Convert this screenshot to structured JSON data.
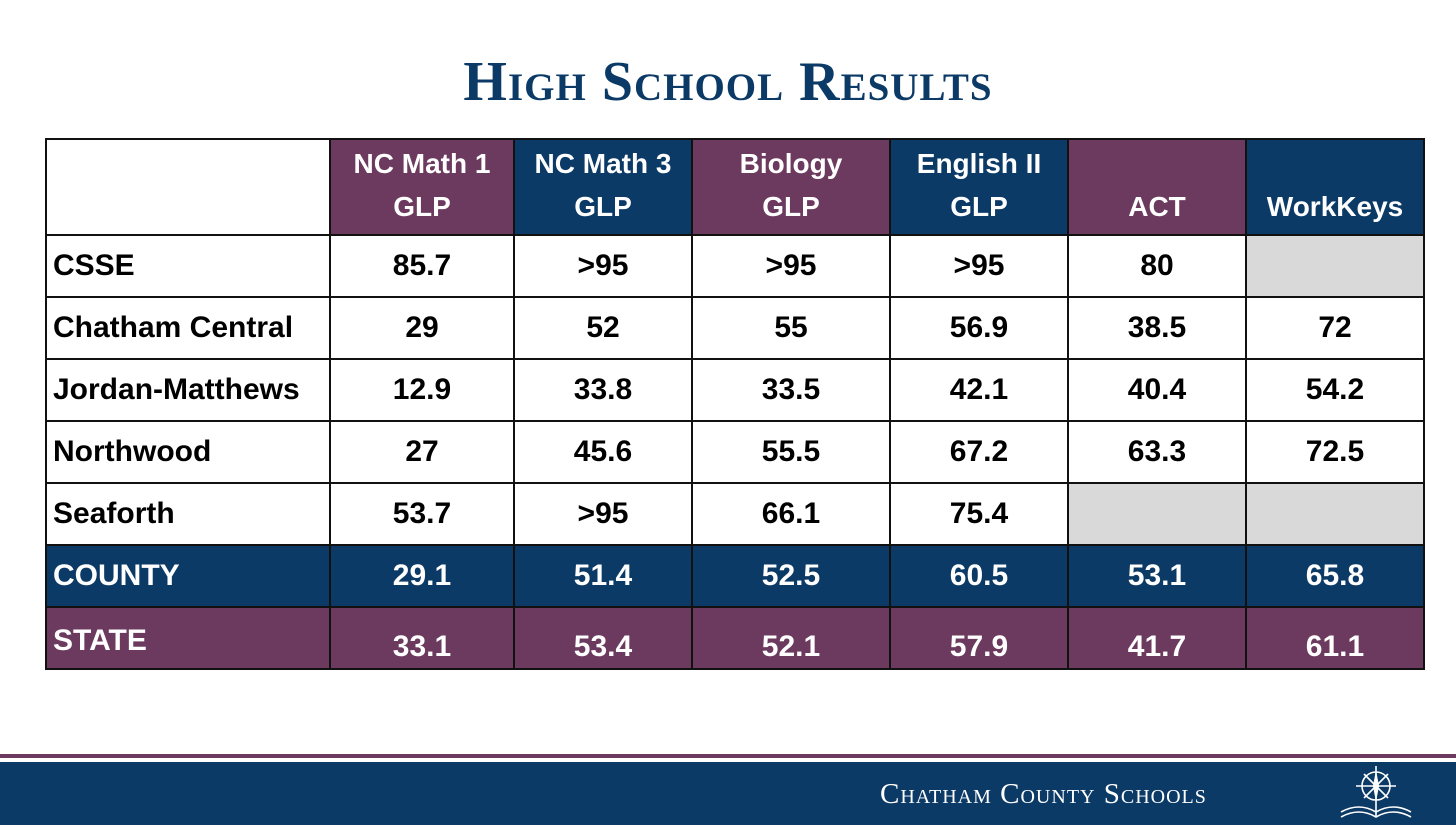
{
  "title": "High School Results",
  "columns": [
    {
      "line1": "NC Math 1",
      "line2": "GLP",
      "color": "#6b3a5e"
    },
    {
      "line1": "NC Math 3",
      "line2": "GLP",
      "color": "#0c3a66"
    },
    {
      "line1": "Biology",
      "line2": "GLP",
      "color": "#6b3a5e"
    },
    {
      "line1": "English II",
      "line2": "GLP",
      "color": "#0c3a66"
    },
    {
      "line1": "",
      "line2": "ACT",
      "color": "#6b3a5e"
    },
    {
      "line1": "",
      "line2": "WorkKeys",
      "color": "#0c3a66"
    }
  ],
  "rows": [
    {
      "name": "CSSE",
      "values": [
        "85.7",
        ">95",
        ">95",
        ">95",
        "80",
        ""
      ]
    },
    {
      "name": "Chatham Central",
      "values": [
        "29",
        "52",
        "55",
        "56.9",
        "38.5",
        "72"
      ]
    },
    {
      "name": "Jordan-Matthews",
      "values": [
        "12.9",
        "33.8",
        "33.5",
        "42.1",
        "40.4",
        "54.2"
      ]
    },
    {
      "name": "Northwood",
      "values": [
        "27",
        "45.6",
        "55.5",
        "67.2",
        "63.3",
        "72.5"
      ]
    },
    {
      "name": "Seaforth",
      "values": [
        "53.7",
        ">95",
        "66.1",
        "75.4",
        "",
        ""
      ]
    }
  ],
  "county": {
    "name": "COUNTY",
    "values": [
      "29.1",
      "51.4",
      "52.5",
      "60.5",
      "53.1",
      "65.8"
    ],
    "color": "#0c3a66"
  },
  "state": {
    "name": "STATE",
    "values": [
      "33.1",
      "53.4",
      "52.1",
      "57.9",
      "41.7",
      "61.1"
    ],
    "color": "#6b3a5e"
  },
  "footer": {
    "org_name": "Chatham County Schools",
    "logo_icon": "compass-book-icon"
  },
  "colors": {
    "navy": "#0c3a66",
    "purple": "#6b3a5e",
    "empty_cell": "#d9d9d9"
  }
}
